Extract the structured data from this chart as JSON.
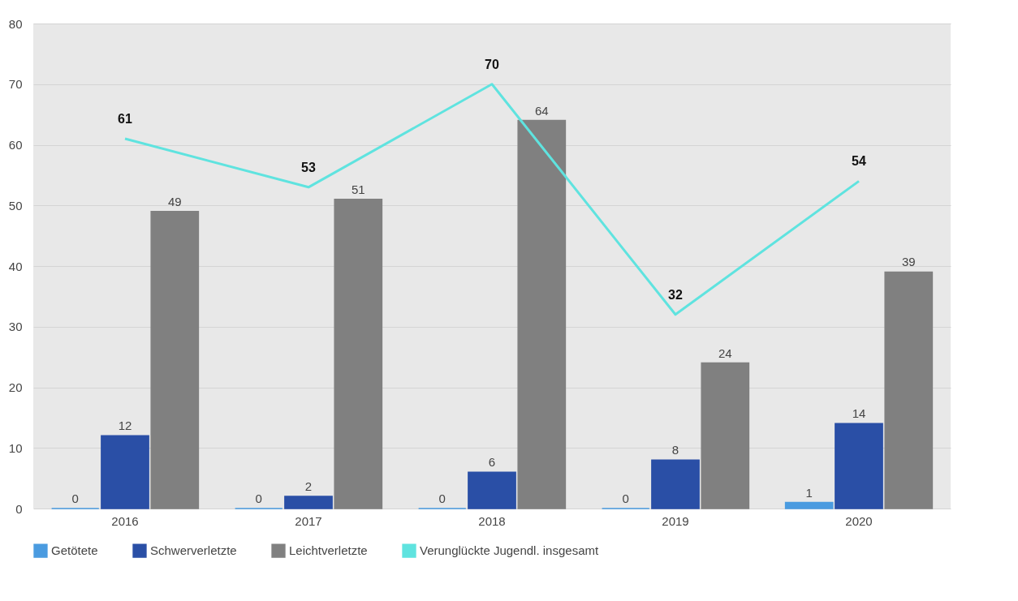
{
  "chart_data": {
    "type": "bar",
    "categories": [
      "2016",
      "2017",
      "2018",
      "2019",
      "2020"
    ],
    "series": [
      {
        "name": "Getötete",
        "color": "#4a9be0",
        "values": [
          0,
          0,
          0,
          0,
          1
        ]
      },
      {
        "name": "Schwerverletzte",
        "color": "#2a4fa6",
        "values": [
          12,
          2,
          6,
          8,
          14
        ]
      },
      {
        "name": "Leichtverletzte",
        "color": "#808080",
        "values": [
          49,
          51,
          64,
          24,
          39
        ]
      },
      {
        "name": "Verunglückte Jugendl. insgesamt",
        "type": "line",
        "color": "#5fe3df",
        "values": [
          61,
          53,
          70,
          32,
          54
        ]
      }
    ],
    "ylim": [
      0,
      80
    ],
    "yticks": [
      0,
      10,
      20,
      30,
      40,
      50,
      60,
      70,
      80
    ],
    "grid": "y",
    "legend": "bottom",
    "data_labels": true
  }
}
